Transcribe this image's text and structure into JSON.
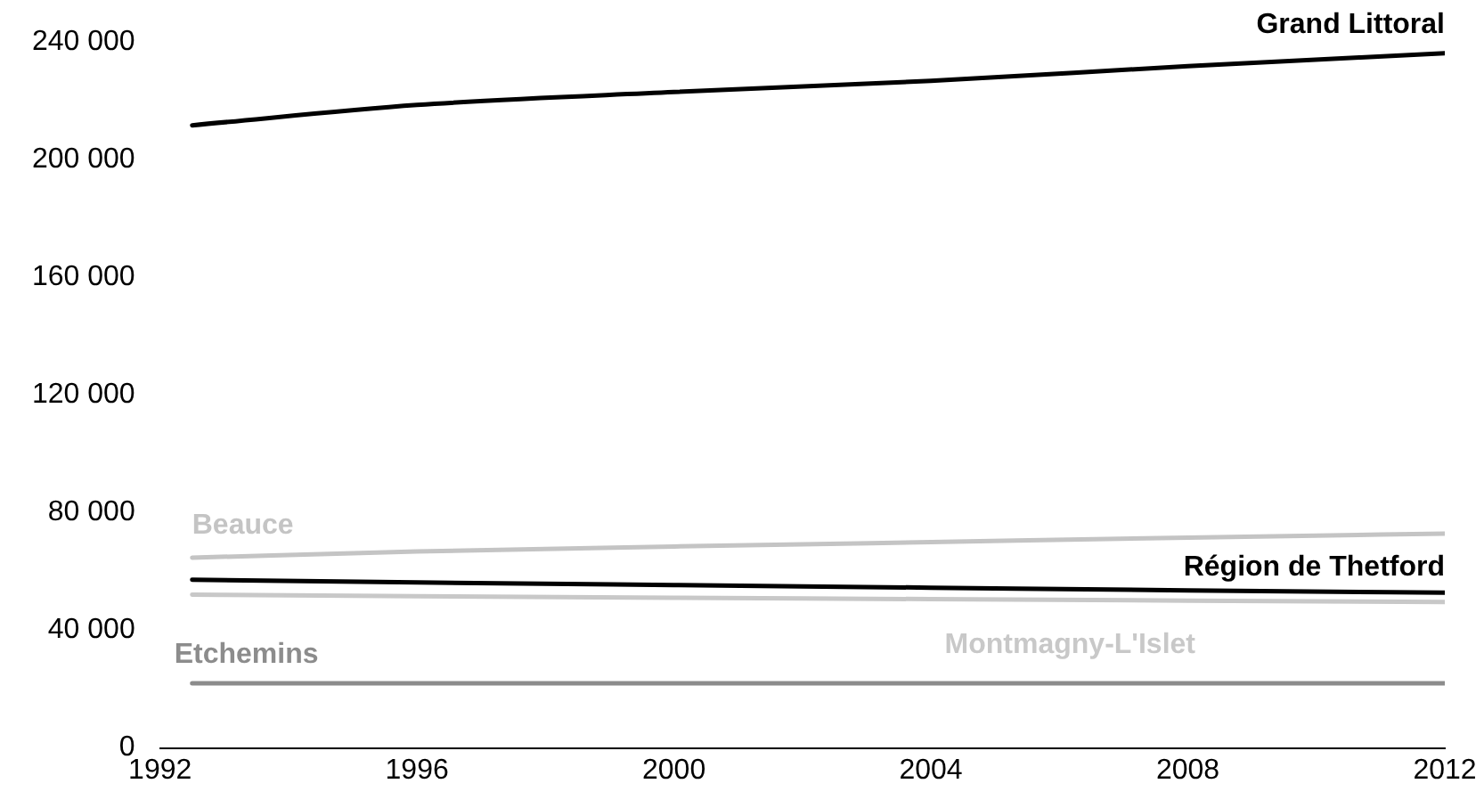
{
  "chart_data": {
    "type": "line",
    "x": [
      1992.5,
      1996,
      2000,
      2004,
      2008,
      2012
    ],
    "series": [
      {
        "name": "Grand Littoral",
        "color": "#000000",
        "values": [
          211700,
          218600,
          223000,
          226800,
          231800,
          236200
        ]
      },
      {
        "name": "Beauce",
        "color": "#c4c4c4",
        "values": [
          64700,
          66800,
          68500,
          70000,
          71500,
          72900
        ]
      },
      {
        "name": "Région de Thetford",
        "color": "#000000",
        "values": [
          57200,
          56300,
          55400,
          54500,
          53600,
          52800
        ]
      },
      {
        "name": "Montmagny-L'Islet",
        "color": "#c8c8c8",
        "values": [
          52100,
          51600,
          51100,
          50600,
          50100,
          49600
        ]
      },
      {
        "name": "Etchemins",
        "color": "#8c8c8c",
        "values": [
          22000,
          22000,
          22000,
          22000,
          22000,
          22000
        ]
      }
    ],
    "xlim": [
      1992,
      2012
    ],
    "xticks": [
      1992,
      1996,
      2000,
      2004,
      2008,
      2012
    ],
    "ylim": [
      0,
      240000
    ],
    "yticks": [
      {
        "value": 0,
        "label": "0"
      },
      {
        "value": 40000,
        "label": "40 000"
      },
      {
        "value": 80000,
        "label": "80 000"
      },
      {
        "value": 120000,
        "label": "120 000"
      },
      {
        "value": 160000,
        "label": "160 000"
      },
      {
        "value": 200000,
        "label": "200 000"
      },
      {
        "value": 240000,
        "label": "240 000"
      }
    ],
    "grid": false,
    "legend": false,
    "marker": "none",
    "line_style": "solid"
  }
}
